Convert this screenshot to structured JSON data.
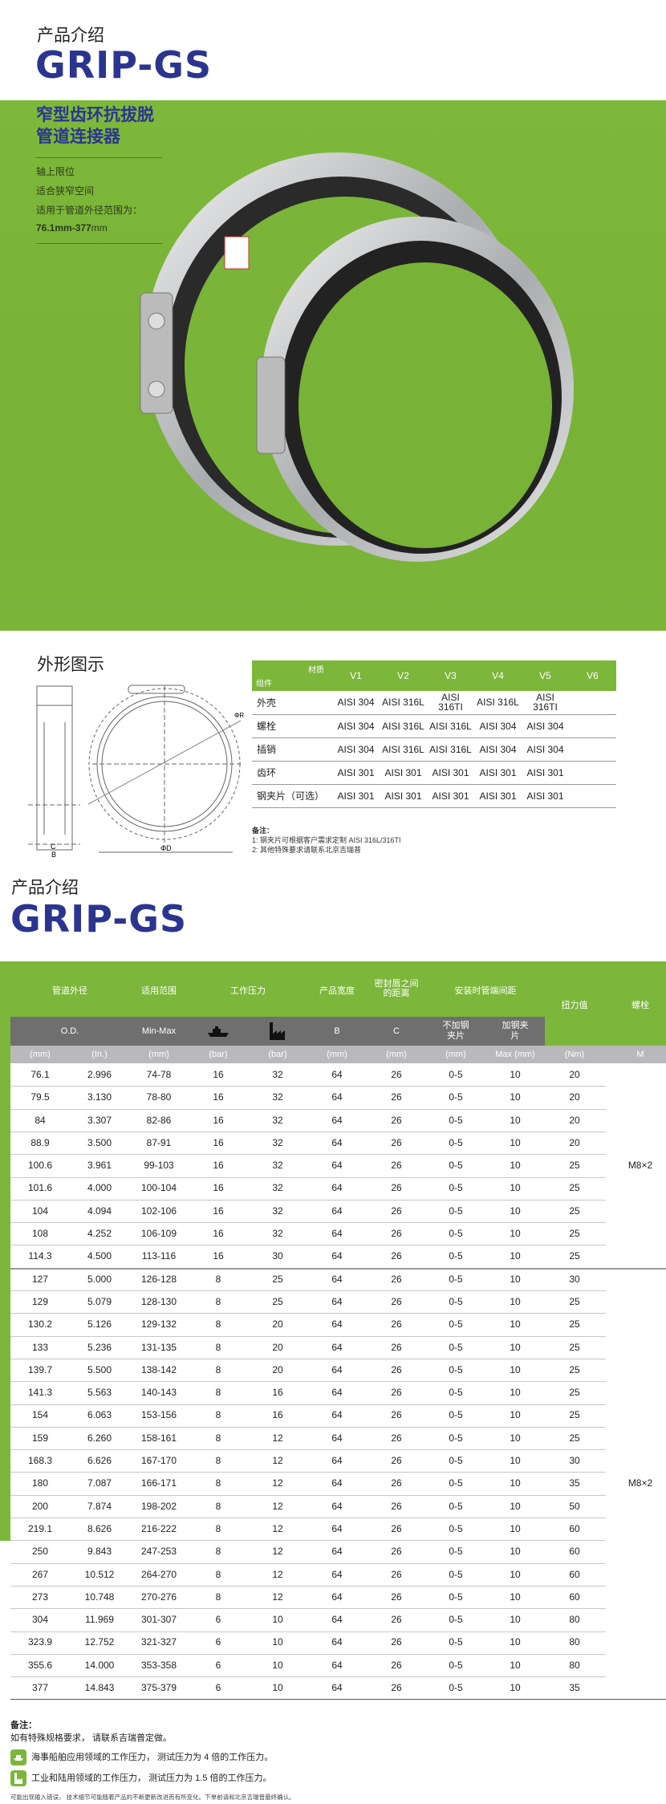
{
  "header": {
    "kicker": "产品介绍",
    "brand": "GRIP-GS"
  },
  "banner": {
    "title_line1": "窄型齿环抗拔脱",
    "title_line2": "管道连接器",
    "features": [
      "轴上限位",
      "适合狭窄空间",
      "适用于管道外径范围为："
    ],
    "range_bold": "76.1mm-377",
    "range_unit": "mm"
  },
  "drawing": {
    "title": "外形图示",
    "labels": {
      "c": "C",
      "b": "B",
      "d": "ΦD",
      "r": "ΦR"
    }
  },
  "materials": {
    "corner_top": "材质",
    "corner_bottom": "组件",
    "columns": [
      "V1",
      "V2",
      "V3",
      "V4",
      "V5",
      "V6"
    ],
    "rows": [
      {
        "part": "外壳",
        "values": [
          "AISI 304",
          "AISI 316L",
          "AISI 316TI",
          "AISI 316L",
          "AISI 316TI",
          ""
        ]
      },
      {
        "part": "螺栓",
        "values": [
          "AISI 304",
          "AISI 316L",
          "AISI 316L",
          "AISI 304",
          "AISI 304",
          ""
        ]
      },
      {
        "part": "插销",
        "values": [
          "AISI 304",
          "AISI 316L",
          "AISI 316L",
          "AISI 304",
          "AISI 304",
          ""
        ]
      },
      {
        "part": "齿环",
        "values": [
          "AISI 301",
          "AISI 301",
          "AISI 301",
          "AISI 301",
          "AISI 301",
          ""
        ]
      },
      {
        "part": "钢夹片（可选）",
        "values": [
          "AISI 301",
          "AISI 301",
          "AISI 301",
          "AISI 301",
          "AISI 301",
          ""
        ]
      }
    ],
    "notes_title": "备注：",
    "notes": [
      "1: 钢夹片可根据客户需求定制 AISI  316L/316TI",
      "2: 其他特殊要求请联系北京吉瑞普"
    ]
  },
  "section2": {
    "kicker": "产品介绍",
    "brand": "GRIP-GS"
  },
  "spec": {
    "group_headers": [
      "管道外径",
      "适用范围",
      "工作压力",
      "产品宽度",
      "密封唇之间的距离",
      "安装时管端间距",
      "扭力值",
      "螺栓"
    ],
    "sub_headers": [
      "O.D.",
      "Min-Max",
      "ship-icon",
      "factory-icon",
      "B",
      "C",
      "不加钢夹片",
      "加钢夹片"
    ],
    "units": [
      "(mm)",
      "(In.)",
      "(mm)",
      "(bar)",
      "(bar)",
      "(mm)",
      "(mm)",
      "(mm)",
      "Max (mm)",
      "(Nm)",
      "M"
    ],
    "rows": [
      [
        "76.1",
        "2.996",
        "74-78",
        "16",
        "32",
        "64",
        "26",
        "0-5",
        "10",
        "20",
        ""
      ],
      [
        "79.5",
        "3.130",
        "78-80",
        "16",
        "32",
        "64",
        "26",
        "0-5",
        "10",
        "20",
        ""
      ],
      [
        "84",
        "3.307",
        "82-86",
        "16",
        "32",
        "64",
        "26",
        "0-5",
        "10",
        "20",
        ""
      ],
      [
        "88.9",
        "3.500",
        "87-91",
        "16",
        "32",
        "64",
        "26",
        "0-5",
        "10",
        "20",
        ""
      ],
      [
        "100.6",
        "3.961",
        "99-103",
        "16",
        "32",
        "64",
        "26",
        "0-5",
        "10",
        "25",
        "M8×2"
      ],
      [
        "101.6",
        "4.000",
        "100-104",
        "16",
        "32",
        "64",
        "26",
        "0-5",
        "10",
        "25",
        ""
      ],
      [
        "104",
        "4.094",
        "102-106",
        "16",
        "32",
        "64",
        "26",
        "0-5",
        "10",
        "25",
        ""
      ],
      [
        "108",
        "4.252",
        "106-109",
        "16",
        "32",
        "64",
        "26",
        "0-5",
        "10",
        "25",
        ""
      ],
      [
        "114.3",
        "4.500",
        "113-116",
        "16",
        "30",
        "64",
        "26",
        "0-5",
        "10",
        "25",
        ""
      ],
      [
        "127",
        "5.000",
        "126-128",
        "8",
        "25",
        "64",
        "26",
        "0-5",
        "10",
        "30",
        ""
      ],
      [
        "129",
        "5.079",
        "128-130",
        "8",
        "25",
        "64",
        "26",
        "0-5",
        "10",
        "25",
        ""
      ],
      [
        "130.2",
        "5.126",
        "129-132",
        "8",
        "20",
        "64",
        "26",
        "0-5",
        "10",
        "25",
        ""
      ],
      [
        "133",
        "5.236",
        "131-135",
        "8",
        "20",
        "64",
        "26",
        "0-5",
        "10",
        "25",
        ""
      ],
      [
        "139.7",
        "5.500",
        "138-142",
        "8",
        "20",
        "64",
        "26",
        "0-5",
        "10",
        "25",
        ""
      ],
      [
        "141.3",
        "5.563",
        "140-143",
        "8",
        "16",
        "64",
        "26",
        "0-5",
        "10",
        "25",
        ""
      ],
      [
        "154",
        "6.063",
        "153-156",
        "8",
        "16",
        "64",
        "26",
        "0-5",
        "10",
        "25",
        ""
      ],
      [
        "159",
        "6.260",
        "158-161",
        "8",
        "12",
        "64",
        "26",
        "0-5",
        "10",
        "25",
        ""
      ],
      [
        "168.3",
        "6.626",
        "167-170",
        "8",
        "12",
        "64",
        "26",
        "0-5",
        "10",
        "30",
        ""
      ],
      [
        "180",
        "7.087",
        "166-171",
        "8",
        "12",
        "64",
        "26",
        "0-5",
        "10",
        "35",
        "M8×2"
      ],
      [
        "200",
        "7.874",
        "198-202",
        "8",
        "12",
        "64",
        "26",
        "0-5",
        "10",
        "50",
        ""
      ],
      [
        "219.1",
        "8.626",
        "216-222",
        "8",
        "12",
        "64",
        "26",
        "0-5",
        "10",
        "60",
        ""
      ],
      [
        "250",
        "9.843",
        "247-253",
        "8",
        "12",
        "64",
        "26",
        "0-5",
        "10",
        "60",
        ""
      ],
      [
        "267",
        "10.512",
        "264-270",
        "8",
        "12",
        "64",
        "26",
        "0-5",
        "10",
        "60",
        ""
      ],
      [
        "273",
        "10.748",
        "270-276",
        "8",
        "12",
        "64",
        "26",
        "0-5",
        "10",
        "60",
        ""
      ],
      [
        "304",
        "11.969",
        "301-307",
        "6",
        "10",
        "64",
        "26",
        "0-5",
        "10",
        "80",
        ""
      ],
      [
        "323.9",
        "12.752",
        "321-327",
        "6",
        "10",
        "64",
        "26",
        "0-5",
        "10",
        "80",
        ""
      ],
      [
        "355.6",
        "14.000",
        "353-358",
        "6",
        "10",
        "64",
        "26",
        "0-5",
        "10",
        "80",
        ""
      ],
      [
        "377",
        "14.843",
        "375-379",
        "6",
        "10",
        "64",
        "26",
        "0-5",
        "10",
        "35",
        ""
      ]
    ]
  },
  "footer": {
    "notes_title": "备注：",
    "note": "如有特殊规格要求，  请联系吉瑞普定做。",
    "legend_ship": "海事船舶应用领域的工作压力，  测试压力为 4 倍的工作压力。",
    "legend_factory": "工业和陆用领域的工作压力，  测试压力为 1.5 倍的工作压力。",
    "disclaimer": "可能出现输入错误，  技术细节可能随着产品的不断更新改进而有所变化。下单前请和北京吉瑞普最终确认。"
  },
  "colors": {
    "green": "#7cb63a",
    "navy": "#2b3590",
    "gray": "#6f6f6f"
  }
}
